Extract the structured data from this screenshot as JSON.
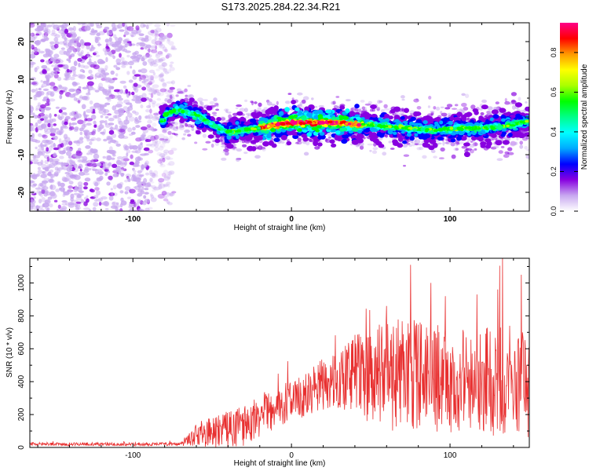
{
  "title": "S173.2025.284.22.34.R21",
  "chart_data": [
    {
      "type": "heatmap",
      "xlabel": "Height of straight line (km)",
      "ylabel": "Frequency (Hz)",
      "xlim": [
        -165,
        150
      ],
      "ylim": [
        -25,
        25
      ],
      "xticks": [
        -100,
        0,
        100
      ],
      "yticks": [
        -20,
        -10,
        0,
        10,
        20
      ],
      "x_tick_labels": [
        "-100",
        "0",
        "100"
      ],
      "y_tick_labels": [
        "-20",
        "-10",
        "0",
        "10",
        "20"
      ],
      "noise_region": {
        "x_from": -165,
        "x_to": -80,
        "freq_from": -25,
        "freq_to": 25
      },
      "ridge": [
        {
          "x": -80,
          "freq": 0.5
        },
        {
          "x": -72,
          "freq": 2.0
        },
        {
          "x": -60,
          "freq": 0.5
        },
        {
          "x": -48,
          "freq": -2.5
        },
        {
          "x": -40,
          "freq": -4.0
        },
        {
          "x": -30,
          "freq": -3.5
        },
        {
          "x": -20,
          "freq": -3.0
        },
        {
          "x": -10,
          "freq": -2.0
        },
        {
          "x": 0,
          "freq": -1.5
        },
        {
          "x": 10,
          "freq": -1.5
        },
        {
          "x": 20,
          "freq": -1.5
        },
        {
          "x": 30,
          "freq": -1.5
        },
        {
          "x": 40,
          "freq": -2.0
        },
        {
          "x": 50,
          "freq": -2.0
        },
        {
          "x": 60,
          "freq": -2.5
        },
        {
          "x": 75,
          "freq": -3.0
        },
        {
          "x": 90,
          "freq": -3.5
        },
        {
          "x": 105,
          "freq": -3.0
        },
        {
          "x": 120,
          "freq": -3.0
        },
        {
          "x": 135,
          "freq": -2.5
        },
        {
          "x": 150,
          "freq": -1.0
        }
      ],
      "peak_region": {
        "x_from": -20,
        "x_to": 45,
        "amplitude": 0.95
      },
      "colorbar": {
        "label": "Normalized spectral amplitude",
        "range": [
          0,
          0.95
        ],
        "ticks": [
          0,
          0.2,
          0.4,
          0.6,
          0.8
        ],
        "tick_labels": [
          "0.0",
          "0.2",
          "0.4",
          "0.6",
          "0.8"
        ],
        "colors": [
          "#ffffff",
          "#c8a8f0",
          "#8800e0",
          "#0000ff",
          "#00aaff",
          "#00ffff",
          "#00ff88",
          "#00ff00",
          "#aaff00",
          "#ffff00",
          "#ff9900",
          "#ff0000",
          "#ff0088"
        ]
      }
    },
    {
      "type": "line",
      "xlabel": "Height of straight line (km)",
      "ylabel": "SNR (10 * v/v)",
      "xlim": [
        -165,
        150
      ],
      "ylim": [
        0,
        1150
      ],
      "xticks": [
        -100,
        0,
        100
      ],
      "yticks": [
        0,
        200,
        400,
        600,
        800,
        1000
      ],
      "x_tick_labels": [
        "-100",
        "0",
        "100"
      ],
      "y_tick_labels": [
        "0",
        "200",
        "400",
        "600",
        "800",
        "1000"
      ],
      "series": [
        {
          "name": "SNR",
          "color": "#e83030",
          "envelope": [
            {
              "x": -165,
              "mean": 20,
              "spread": 10
            },
            {
              "x": -70,
              "mean": 20,
              "spread": 10
            },
            {
              "x": -60,
              "mean": 80,
              "spread": 70
            },
            {
              "x": -45,
              "mean": 100,
              "spread": 110
            },
            {
              "x": -30,
              "mean": 140,
              "spread": 130
            },
            {
              "x": -15,
              "mean": 210,
              "spread": 120
            },
            {
              "x": 0,
              "mean": 290,
              "spread": 130
            },
            {
              "x": 15,
              "mean": 360,
              "spread": 150
            },
            {
              "x": 30,
              "mean": 420,
              "spread": 180
            },
            {
              "x": 45,
              "mean": 440,
              "spread": 280
            },
            {
              "x": 60,
              "mean": 440,
              "spread": 330
            },
            {
              "x": 75,
              "mean": 430,
              "spread": 360
            },
            {
              "x": 90,
              "mean": 420,
              "spread": 330
            },
            {
              "x": 105,
              "mean": 410,
              "spread": 320
            },
            {
              "x": 120,
              "mean": 400,
              "spread": 330
            },
            {
              "x": 135,
              "mean": 420,
              "spread": 360
            },
            {
              "x": 150,
              "mean": 380,
              "spread": 320
            }
          ],
          "peaks": [
            {
              "x": 75,
              "y": 1110
            },
            {
              "x": 88,
              "y": 1000
            },
            {
              "x": 133,
              "y": 1150
            },
            {
              "x": 145,
              "y": 1050
            },
            {
              "x": 130,
              "y": 960
            },
            {
              "x": 117,
              "y": 930
            },
            {
              "x": 60,
              "y": 860
            },
            {
              "x": 97,
              "y": 920
            }
          ]
        }
      ]
    }
  ]
}
